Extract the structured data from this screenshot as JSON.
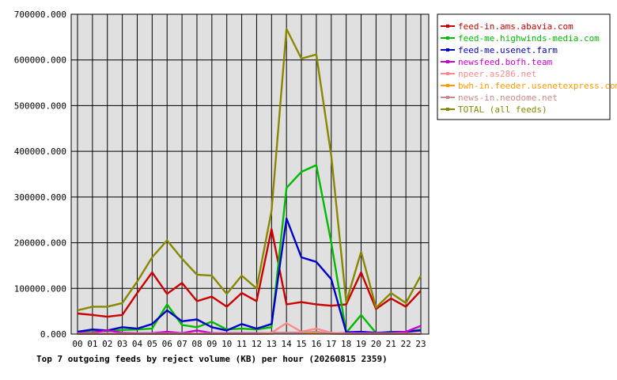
{
  "chart_data": {
    "type": "line",
    "title": "Top 7 outgoing feeds by reject volume (KB) per hour (20260815 2359)",
    "xlabel": "",
    "ylabel": "",
    "categories": [
      "00",
      "01",
      "02",
      "03",
      "04",
      "05",
      "06",
      "07",
      "08",
      "09",
      "10",
      "11",
      "12",
      "13",
      "14",
      "15",
      "16",
      "17",
      "18",
      "19",
      "20",
      "21",
      "22",
      "23"
    ],
    "ylim": [
      0,
      700000
    ],
    "yticks": [
      0,
      100000,
      200000,
      300000,
      400000,
      500000,
      600000,
      700000
    ],
    "ytick_labels": [
      "0.000",
      "100000.000",
      "200000.000",
      "300000.000",
      "400000.000",
      "500000.000",
      "600000.000",
      "700000.000"
    ],
    "grid": true,
    "legend_position": "top-right",
    "series": [
      {
        "name": "feed-in.ams.abavia.com",
        "color": "#cc0000",
        "values": [
          45000,
          42000,
          38000,
          42000,
          90000,
          135000,
          88000,
          112000,
          72000,
          82000,
          60000,
          90000,
          72000,
          230000,
          65000,
          70000,
          65000,
          62000,
          65000,
          135000,
          55000,
          78000,
          60000,
          95000
        ]
      },
      {
        "name": "feed-me.highwinds-media.com",
        "color": "#00bb00",
        "values": [
          5000,
          8000,
          6000,
          9000,
          10000,
          12000,
          65000,
          20000,
          15000,
          27000,
          10000,
          12000,
          10000,
          15000,
          320000,
          355000,
          370000,
          200000,
          3000,
          42000,
          2000,
          5000,
          4000,
          10000
        ]
      },
      {
        "name": "feed-me.usenet.farm",
        "color": "#0000cc",
        "values": [
          5000,
          10000,
          8000,
          15000,
          12000,
          22000,
          52000,
          28000,
          32000,
          15000,
          8000,
          22000,
          12000,
          22000,
          253000,
          168000,
          158000,
          120000,
          4000,
          5000,
          3000,
          4000,
          5000,
          8000
        ]
      },
      {
        "name": "newsfeed.bofh.team",
        "color": "#cc00cc",
        "values": [
          2000,
          3000,
          8000,
          3000,
          2000,
          2000,
          5000,
          2000,
          8000,
          2000,
          2000,
          2000,
          2000,
          2000,
          3000,
          3000,
          3000,
          2000,
          2000,
          2000,
          2000,
          2000,
          5000,
          18000
        ]
      },
      {
        "name": "npeer.as286.net",
        "color": "#ff8888",
        "values": [
          1000,
          1000,
          1000,
          1000,
          1000,
          1000,
          1000,
          1000,
          1000,
          1000,
          1000,
          1000,
          1000,
          3000,
          24000,
          5000,
          12000,
          3000,
          1000,
          1000,
          1000,
          1000,
          1000,
          1000
        ]
      },
      {
        "name": "bwh-in.feeder.usenetexpress.com",
        "color": "#ff9900",
        "values": [
          500,
          500,
          500,
          500,
          500,
          500,
          500,
          500,
          500,
          500,
          500,
          500,
          500,
          1000,
          2000,
          2000,
          2000,
          1000,
          500,
          500,
          500,
          500,
          500,
          500
        ]
      },
      {
        "name": "news-in.neodome.net",
        "color": "#cc8888",
        "values": [
          500,
          500,
          500,
          500,
          500,
          500,
          500,
          500,
          500,
          500,
          500,
          500,
          500,
          1000,
          3000,
          3000,
          5000,
          1000,
          500,
          500,
          500,
          500,
          500,
          500
        ]
      },
      {
        "name": "TOTAL (all feeds)",
        "color": "#888800",
        "values": [
          52000,
          60000,
          60000,
          68000,
          115000,
          168000,
          205000,
          165000,
          130000,
          128000,
          88000,
          128000,
          100000,
          270000,
          668000,
          603000,
          612000,
          390000,
          70000,
          180000,
          58000,
          90000,
          68000,
          128000
        ]
      }
    ]
  }
}
